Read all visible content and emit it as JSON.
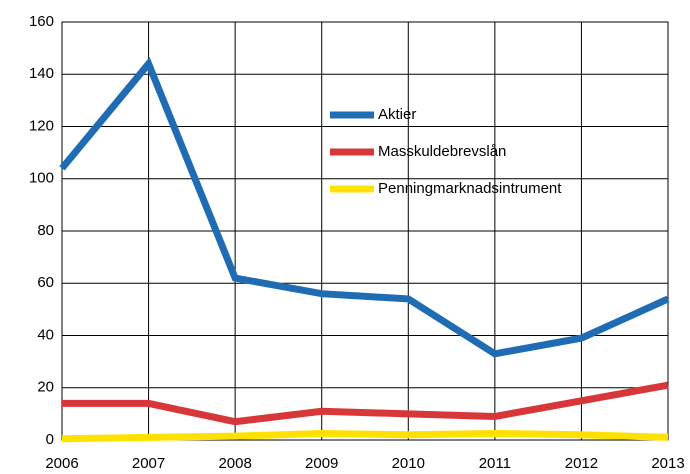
{
  "chart_data": {
    "type": "line",
    "x": [
      2006,
      2007,
      2008,
      2009,
      2010,
      2011,
      2012,
      2013
    ],
    "series": [
      {
        "name": "Aktier",
        "color": "#1f6cb4",
        "values": [
          104,
          144,
          62,
          56,
          54,
          33,
          39,
          54
        ]
      },
      {
        "name": "Masskuldebrevslån",
        "color": "#d8373a",
        "values": [
          14,
          14,
          7,
          11,
          10,
          9,
          15,
          21
        ]
      },
      {
        "name": "Penningmarknadsintrument",
        "color": "#ffe100",
        "values": [
          0.5,
          1,
          1.5,
          2.5,
          2,
          2.5,
          2,
          1
        ]
      }
    ],
    "xlim": [
      2006,
      2013
    ],
    "xticks": [
      2006,
      2007,
      2008,
      2009,
      2010,
      2011,
      2012,
      2013
    ],
    "ylim": [
      0,
      160
    ],
    "yticks": [
      0,
      20,
      40,
      60,
      80,
      100,
      120,
      140,
      160
    ],
    "grid": true,
    "legend": "upper center"
  }
}
